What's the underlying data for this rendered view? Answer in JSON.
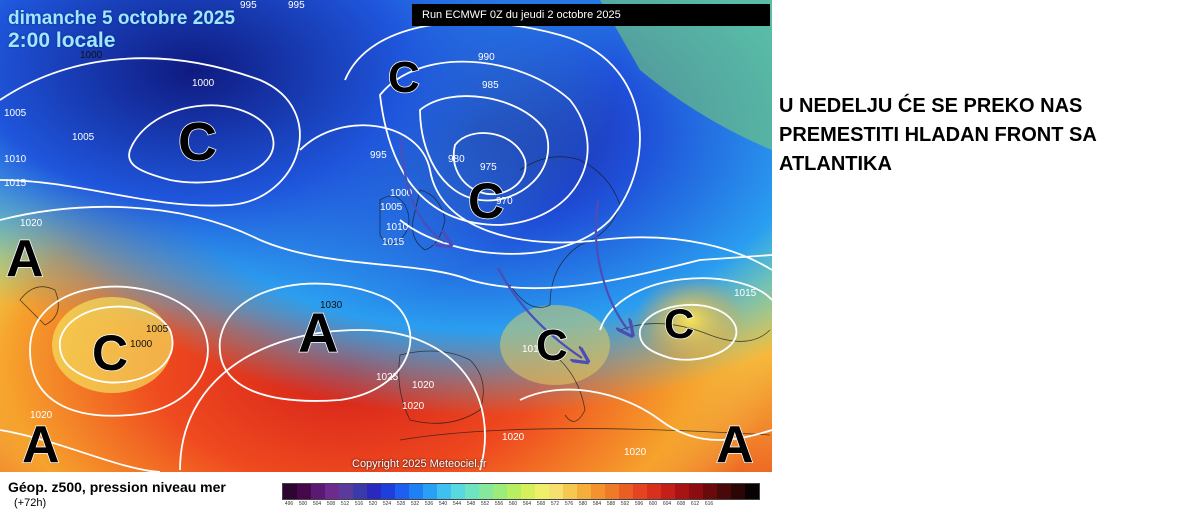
{
  "map": {
    "date_line": "dimanche 5 octobre 2025",
    "time_line": "2:00 locale",
    "run_label": "Run ECMWF 0Z du jeudi 2 octobre 2025",
    "copyright": "Copyright 2025 Meteociel.fr",
    "pressure_systems": [
      "C",
      "C",
      "C",
      "A",
      "C",
      "A",
      "C",
      "C",
      "A",
      "A"
    ],
    "isobar_labels": [
      "995",
      "995",
      "1000",
      "1000",
      "1005",
      "1005",
      "1010",
      "1015",
      "990",
      "985",
      "995",
      "980",
      "975",
      "970",
      "1000",
      "1005",
      "1010",
      "1015",
      "1020",
      "1005",
      "1000",
      "1030",
      "1025",
      "1020",
      "1020",
      "1020",
      "1020",
      "1010",
      "1020",
      "1015"
    ],
    "colors": {
      "deep_low": "#1d1f8f",
      "low": "#1f6ae8",
      "mid": "#3fc4e8",
      "neutral": "#8ee46b",
      "warm": "#f6e35a",
      "hot": "#f5a026",
      "high": "#e8321d",
      "arrow": "#4a4fb8"
    }
  },
  "legend": {
    "title": "Géop. z500, pression niveau mer",
    "subtitle": "(+72h)",
    "scale_colors": [
      "#2c0630",
      "#46084b",
      "#5a1a73",
      "#6e2b8f",
      "#5a3a9c",
      "#3a3aa8",
      "#2929c0",
      "#1f3fdc",
      "#1f5ff0",
      "#1f7ff5",
      "#2aa0f5",
      "#3fc0f0",
      "#5ad8e0",
      "#6fe4c0",
      "#85e89c",
      "#9cec7a",
      "#b8ef60",
      "#d4f05a",
      "#eef06a",
      "#f6e070",
      "#f7c850",
      "#f6ae3a",
      "#f3922e",
      "#ef7a28",
      "#ea5e24",
      "#e44420",
      "#d8301c",
      "#c42018",
      "#a81414",
      "#8c0c10",
      "#6a0a0c",
      "#4a0808",
      "#2a0606",
      "#0a0202"
    ],
    "scale_ticks": [
      "496",
      "500",
      "504",
      "508",
      "512",
      "516",
      "520",
      "524",
      "528",
      "532",
      "536",
      "540",
      "544",
      "548",
      "552",
      "556",
      "560",
      "564",
      "568",
      "572",
      "576",
      "580",
      "584",
      "588",
      "592",
      "596",
      "600",
      "604",
      "608",
      "612",
      "616"
    ]
  },
  "annotation": {
    "line1": "U NEDELJU ĆE SE PREKO NAS",
    "line2": "PREMESTITI HLADAN FRONT SA",
    "line3": "ATLANTIKA"
  }
}
